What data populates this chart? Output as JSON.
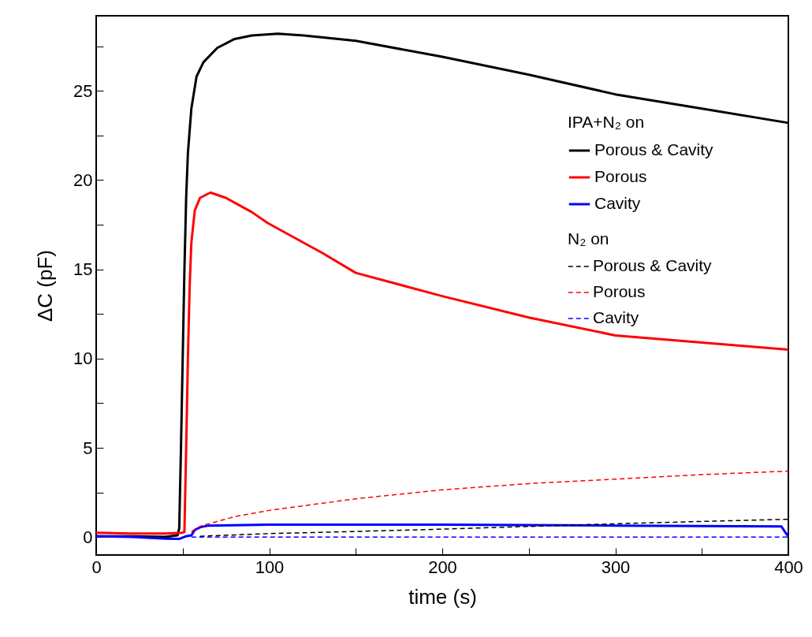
{
  "chart_data": {
    "type": "line",
    "xlabel": "time (s)",
    "ylabel": "ΔC (pF)",
    "legend_title": [
      "IPA+N₂ on",
      "N₂ on"
    ],
    "legend": "top right",
    "grid": false,
    "marker": "none",
    "xlim": [
      0,
      400
    ],
    "ylim": [
      -1,
      29.2
    ],
    "xticks": [
      0,
      {
        "value": 50,
        "label": null
      },
      100,
      {
        "value": 150,
        "label": null
      },
      200,
      {
        "value": 250,
        "label": null
      },
      300,
      {
        "value": 350,
        "label": null
      },
      400
    ],
    "yticks": [
      0,
      {
        "value": 2.5,
        "label": null
      },
      5,
      {
        "value": 7.5,
        "label": null
      },
      10,
      {
        "value": 12.5,
        "label": null
      },
      15,
      {
        "value": 17.5,
        "label": null
      },
      20,
      {
        "value": 22.5,
        "label": null
      },
      25,
      {
        "value": 27.5,
        "label": null
      }
    ],
    "series": [
      {
        "name": "Porous & Cavity",
        "color": "#000000",
        "line_style": "solid",
        "x": [
          0,
          20,
          40,
          47,
          48,
          49,
          50,
          51,
          52,
          53,
          55,
          58,
          62,
          70,
          80,
          90,
          105,
          120,
          150,
          200,
          250,
          300,
          350,
          400
        ],
        "values": [
          0.05,
          0.05,
          0.02,
          0.1,
          0.5,
          5,
          10,
          15,
          19,
          21.5,
          24,
          25.8,
          26.6,
          27.4,
          27.9,
          28.1,
          28.2,
          28.1,
          27.8,
          26.9,
          25.9,
          24.8,
          24,
          23.2
        ]
      },
      {
        "name": "Porous",
        "color": "#ff0000",
        "line_style": "solid",
        "x": [
          0,
          20,
          40,
          50,
          51,
          52,
          53,
          54,
          55,
          57,
          60,
          66,
          75,
          90,
          99,
          131,
          150,
          200,
          250,
          300,
          350,
          400
        ],
        "values": [
          0.25,
          0.2,
          0.2,
          0.25,
          0.3,
          5,
          10,
          14,
          16.5,
          18.3,
          19,
          19.3,
          19,
          18.2,
          17.6,
          15.9,
          14.8,
          13.5,
          12.3,
          11.3,
          10.9,
          10.5
        ]
      },
      {
        "name": "Cavity",
        "color": "#0000ff",
        "line_style": "solid",
        "x": [
          0,
          20,
          40,
          48,
          52,
          55,
          57,
          60,
          65,
          100,
          200,
          300,
          396,
          398,
          400
        ],
        "values": [
          0.05,
          0.02,
          -0.08,
          -0.1,
          0.05,
          0.1,
          0.4,
          0.55,
          0.65,
          0.7,
          0.7,
          0.65,
          0.6,
          0.3,
          0.05
        ]
      },
      {
        "name": "Porous & Cavity",
        "color": "#000000",
        "line_style": "dashed",
        "x": [
          60,
          100,
          150,
          200,
          250,
          300,
          350,
          400
        ],
        "values": [
          0.05,
          0.2,
          0.32,
          0.45,
          0.6,
          0.75,
          0.88,
          1.0
        ]
      },
      {
        "name": "Porous",
        "color": "#ff0000",
        "line_style": "dashed",
        "x": [
          55,
          57,
          61,
          65,
          80,
          100,
          150,
          200,
          250,
          300,
          350,
          400
        ],
        "values": [
          0.3,
          0.45,
          0.65,
          0.75,
          1.15,
          1.5,
          2.15,
          2.65,
          3.0,
          3.25,
          3.5,
          3.7
        ]
      },
      {
        "name": "Cavity",
        "color": "#0000ff",
        "line_style": "dashed",
        "x": [
          55,
          100,
          200,
          300,
          400
        ],
        "values": [
          0,
          0,
          0,
          0,
          0
        ]
      }
    ]
  }
}
